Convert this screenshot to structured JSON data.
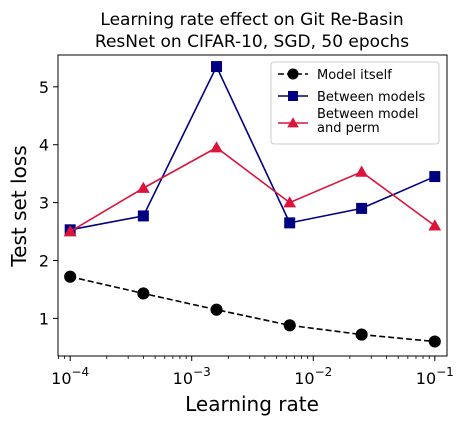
{
  "chart_data": {
    "type": "line",
    "title_lines": [
      "Learning rate effect on Git Re-Basin",
      "ResNet on CIFAR-10, SGD, 50 epochs"
    ],
    "xlabel": "Learning rate",
    "ylabel": "Test set loss",
    "xscale": "log",
    "xlim": [
      7.94e-05,
      0.126
    ],
    "ylim": [
      0.35,
      5.55
    ],
    "x_ticks": [
      {
        "value": 0.0001,
        "base": "10",
        "exp": "−4"
      },
      {
        "value": 0.001,
        "base": "10",
        "exp": "−3"
      },
      {
        "value": 0.01,
        "base": "10",
        "exp": "−2"
      },
      {
        "value": 0.1,
        "base": "10",
        "exp": "−1"
      }
    ],
    "y_ticks": [
      1,
      2,
      3,
      4,
      5
    ],
    "x": [
      0.0001,
      0.0004,
      0.0016,
      0.0064,
      0.025,
      0.1
    ],
    "series": [
      {
        "name": "Model itself",
        "color": "#000000",
        "marker": "circle",
        "dashed": true,
        "values": [
          1.72,
          1.43,
          1.15,
          0.88,
          0.72,
          0.6
        ]
      },
      {
        "name": "Between models",
        "color": "#000080",
        "marker": "square",
        "dashed": false,
        "values": [
          2.53,
          2.77,
          5.35,
          2.65,
          2.9,
          3.45
        ]
      },
      {
        "name": "Between model and perm",
        "label_lines": [
          "Between model",
          "and perm"
        ],
        "color": "#dc143c",
        "marker": "triangle",
        "dashed": false,
        "values": [
          2.5,
          3.25,
          3.95,
          3.0,
          3.53,
          2.6
        ]
      }
    ],
    "legend": "top-right",
    "grid": false
  }
}
